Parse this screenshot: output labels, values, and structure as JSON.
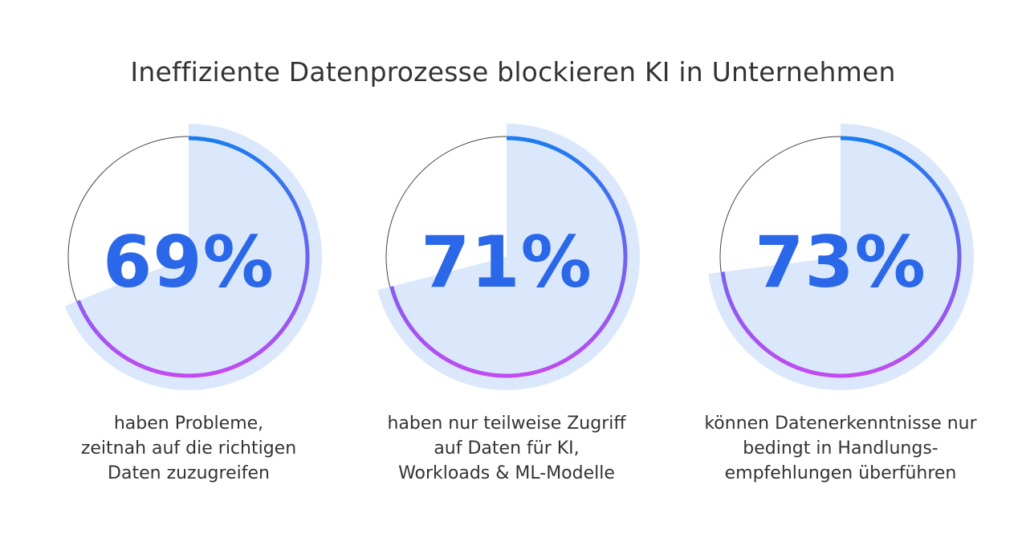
{
  "title": "Ineffiziente Datenprozesse blockieren KI in Unternehmen",
  "colors": {
    "fill": "#dbe8fb",
    "gradient_start": "#1a7cf0",
    "gradient_end": "#c24bf0",
    "number": "#2a67e9",
    "outline": "#444444"
  },
  "chart_data": {
    "type": "pie",
    "title": "Ineffiziente Datenprozesse blockieren KI in Unternehmen",
    "stats": [
      {
        "value": 69,
        "label": "69%",
        "lines": [
          "haben Probleme,",
          "zeitnah auf die richtigen",
          "Daten zuzugreifen"
        ]
      },
      {
        "value": 71,
        "label": "71%",
        "lines": [
          "haben nur teilweise Zugriff",
          "auf Daten für KI,",
          "Workloads & ML-Modelle"
        ]
      },
      {
        "value": 73,
        "label": "73%",
        "lines": [
          "können Datenerkenntnisse nur",
          "bedingt in Handlungs-",
          "empfehlungen überführen"
        ]
      }
    ]
  }
}
